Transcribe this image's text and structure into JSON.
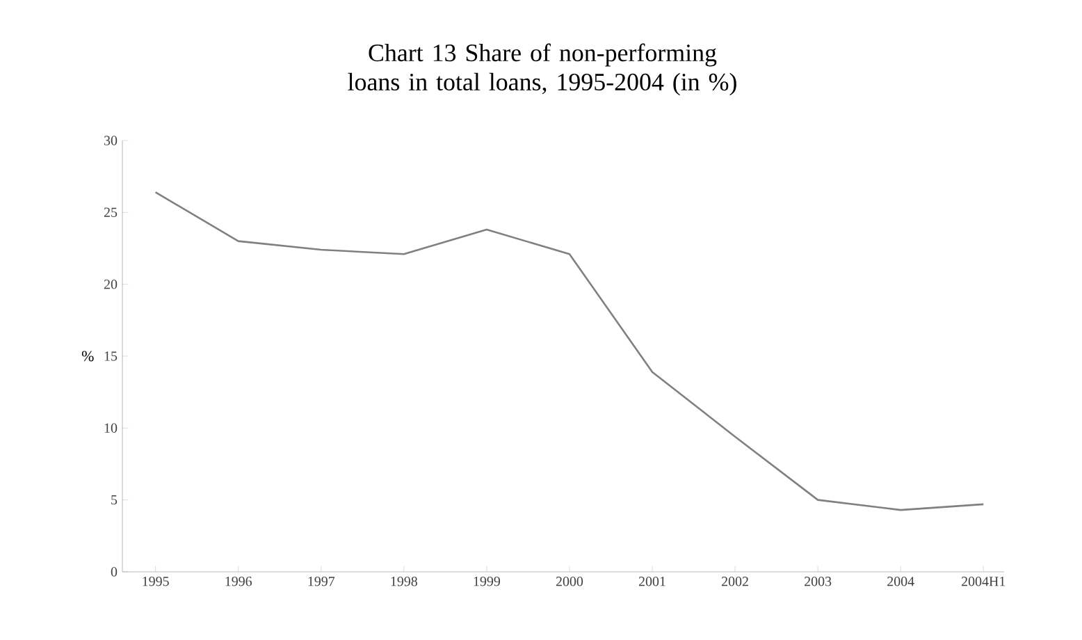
{
  "chart_data": {
    "type": "line",
    "title": "Chart 13  Share of non-performing loans in total loans, 1995-2004 (in %)",
    "ylabel": "%",
    "categories": [
      "1995",
      "1996",
      "1997",
      "1998",
      "1999",
      "2000",
      "2001",
      "2002",
      "2003",
      "2004",
      "2004H1"
    ],
    "values": [
      26.4,
      23.0,
      22.4,
      22.1,
      23.8,
      22.1,
      13.9,
      9.4,
      5.0,
      4.3,
      4.7
    ],
    "color": "#808080",
    "ylim": [
      0,
      30
    ],
    "yticks": [
      0,
      5,
      10,
      15,
      20,
      25,
      30
    ],
    "grid": false,
    "marker": "none",
    "line_style": "solid"
  }
}
